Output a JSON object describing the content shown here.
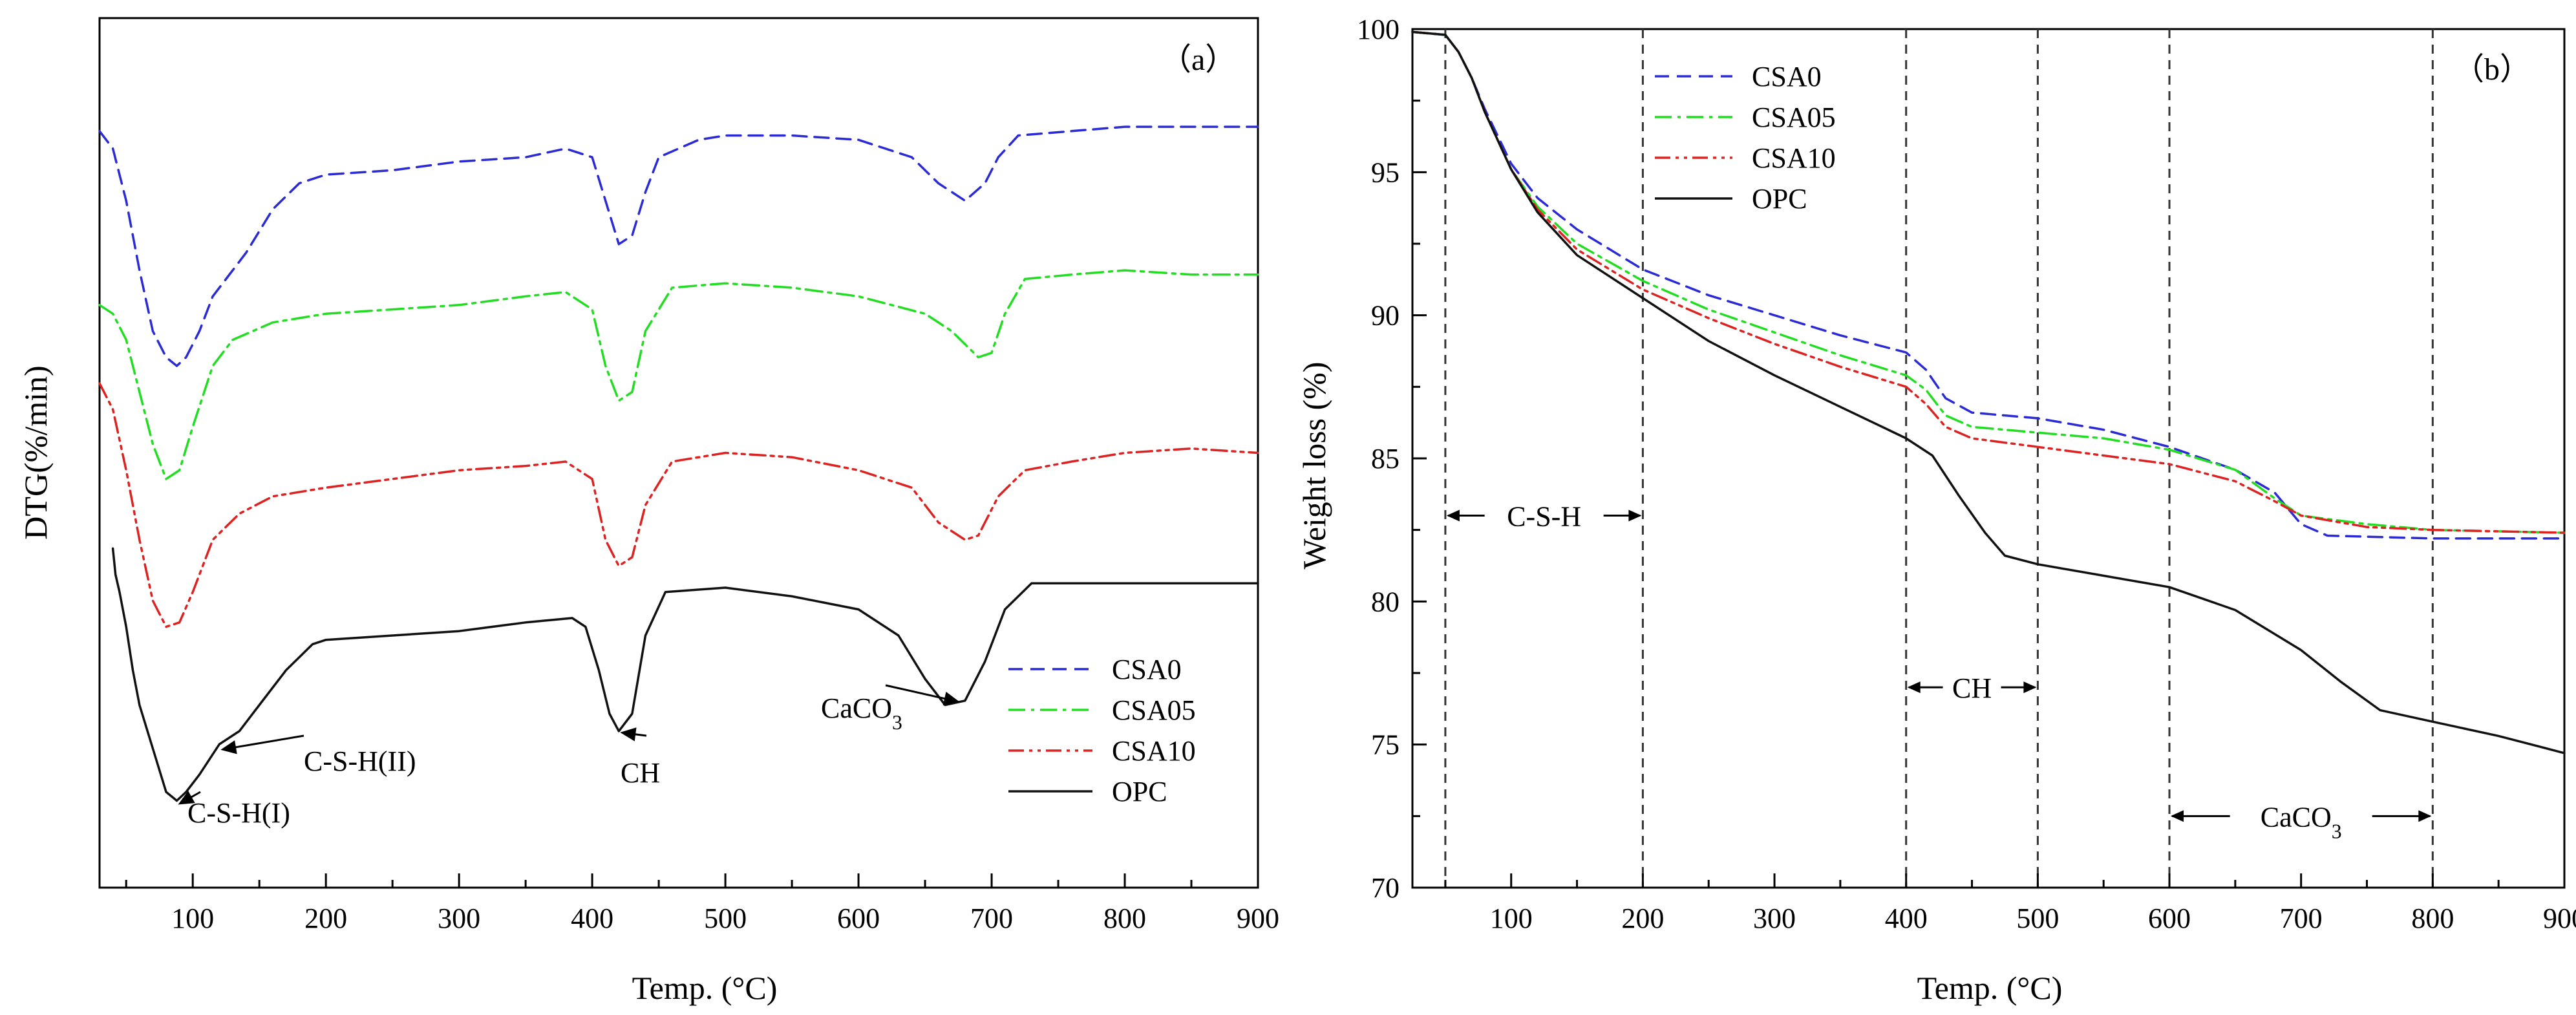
{
  "figure": {
    "panels": [
      "(a)",
      "(b)"
    ]
  },
  "chart_data": [
    {
      "id": "a",
      "type": "line",
      "panel_label": "（a）",
      "xlabel": "Temp. (°C)",
      "ylabel": "DTG(%/min)",
      "xlim": [
        30,
        900
      ],
      "ylim": [
        0,
        100
      ],
      "xticks": [
        100,
        200,
        300,
        400,
        500,
        600,
        700,
        800,
        900
      ],
      "y_tick_labels_shown": false,
      "legend": {
        "position": "bottom-right"
      },
      "series": [
        {
          "name": "CSA0",
          "color": "#2b2bd6",
          "dash": "dash",
          "points": [
            [
              30,
              87
            ],
            [
              40,
              85
            ],
            [
              50,
              79
            ],
            [
              60,
              71
            ],
            [
              70,
              64
            ],
            [
              80,
              61
            ],
            [
              88,
              60
            ],
            [
              95,
              61
            ],
            [
              105,
              64
            ],
            [
              115,
              68
            ],
            [
              125,
              70
            ],
            [
              140,
              73
            ],
            [
              160,
              78
            ],
            [
              180,
              81
            ],
            [
              200,
              82
            ],
            [
              250,
              82.5
            ],
            [
              300,
              83.5
            ],
            [
              350,
              84
            ],
            [
              380,
              85
            ],
            [
              400,
              84
            ],
            [
              410,
              79
            ],
            [
              420,
              74
            ],
            [
              430,
              75
            ],
            [
              440,
              80
            ],
            [
              450,
              84
            ],
            [
              480,
              86
            ],
            [
              500,
              86.5
            ],
            [
              550,
              86.5
            ],
            [
              600,
              86
            ],
            [
              640,
              84
            ],
            [
              660,
              81
            ],
            [
              680,
              79
            ],
            [
              695,
              81
            ],
            [
              705,
              84
            ],
            [
              720,
              86.5
            ],
            [
              760,
              87
            ],
            [
              800,
              87.5
            ],
            [
              850,
              87.5
            ],
            [
              900,
              87.5
            ]
          ]
        },
        {
          "name": "CSA05",
          "color": "#22dd22",
          "dash": "dashdot",
          "points": [
            [
              30,
              67
            ],
            [
              40,
              66
            ],
            [
              50,
              63
            ],
            [
              60,
              57
            ],
            [
              70,
              51
            ],
            [
              80,
              47
            ],
            [
              90,
              48
            ],
            [
              100,
              53
            ],
            [
              115,
              60
            ],
            [
              130,
              63
            ],
            [
              160,
              65
            ],
            [
              200,
              66
            ],
            [
              250,
              66.5
            ],
            [
              300,
              67
            ],
            [
              350,
              68
            ],
            [
              380,
              68.5
            ],
            [
              400,
              66.5
            ],
            [
              410,
              60
            ],
            [
              420,
              56
            ],
            [
              430,
              57
            ],
            [
              440,
              64
            ],
            [
              460,
              69
            ],
            [
              500,
              69.5
            ],
            [
              550,
              69
            ],
            [
              600,
              68
            ],
            [
              650,
              66
            ],
            [
              670,
              64
            ],
            [
              690,
              61
            ],
            [
              700,
              61.5
            ],
            [
              710,
              66
            ],
            [
              725,
              70
            ],
            [
              760,
              70.5
            ],
            [
              800,
              71
            ],
            [
              850,
              70.5
            ],
            [
              900,
              70.5
            ]
          ]
        },
        {
          "name": "CSA10",
          "color": "#dd2222",
          "dash": "dashdotdot",
          "points": [
            [
              30,
              58
            ],
            [
              40,
              55
            ],
            [
              50,
              48
            ],
            [
              60,
              40
            ],
            [
              70,
              33
            ],
            [
              80,
              30
            ],
            [
              90,
              30.5
            ],
            [
              100,
              34
            ],
            [
              115,
              40
            ],
            [
              135,
              43
            ],
            [
              160,
              45
            ],
            [
              200,
              46
            ],
            [
              250,
              47
            ],
            [
              300,
              48
            ],
            [
              350,
              48.5
            ],
            [
              380,
              49
            ],
            [
              400,
              47
            ],
            [
              410,
              40
            ],
            [
              420,
              37
            ],
            [
              430,
              38
            ],
            [
              440,
              44
            ],
            [
              460,
              49
            ],
            [
              500,
              50
            ],
            [
              550,
              49.5
            ],
            [
              600,
              48
            ],
            [
              640,
              46
            ],
            [
              660,
              42
            ],
            [
              680,
              40
            ],
            [
              690,
              40.5
            ],
            [
              705,
              45
            ],
            [
              725,
              48
            ],
            [
              760,
              49
            ],
            [
              800,
              50
            ],
            [
              850,
              50.5
            ],
            [
              900,
              50
            ]
          ]
        },
        {
          "name": "OPC",
          "color": "#111111",
          "dash": "solid",
          "points": [
            [
              40,
              39
            ],
            [
              42,
              36
            ],
            [
              45,
              34
            ],
            [
              50,
              30
            ],
            [
              55,
              25
            ],
            [
              60,
              21
            ],
            [
              70,
              16
            ],
            [
              80,
              11
            ],
            [
              88,
              10
            ],
            [
              95,
              11
            ],
            [
              105,
              13
            ],
            [
              120,
              16.5
            ],
            [
              135,
              18
            ],
            [
              150,
              21
            ],
            [
              170,
              25
            ],
            [
              190,
              28
            ],
            [
              200,
              28.5
            ],
            [
              250,
              29
            ],
            [
              300,
              29.5
            ],
            [
              350,
              30.5
            ],
            [
              385,
              31
            ],
            [
              395,
              30
            ],
            [
              405,
              25
            ],
            [
              413,
              20
            ],
            [
              420,
              18
            ],
            [
              430,
              20
            ],
            [
              440,
              29
            ],
            [
              455,
              34
            ],
            [
              500,
              34.5
            ],
            [
              550,
              33.5
            ],
            [
              600,
              32
            ],
            [
              630,
              29
            ],
            [
              650,
              24
            ],
            [
              665,
              21
            ],
            [
              680,
              21.5
            ],
            [
              695,
              26
            ],
            [
              710,
              32
            ],
            [
              730,
              35
            ],
            [
              800,
              35
            ],
            [
              850,
              35
            ],
            [
              900,
              35
            ]
          ]
        }
      ],
      "annotations": [
        {
          "text": "C-S-H(I)",
          "target": [
            88,
            10
          ]
        },
        {
          "text": "C-S-H(II)",
          "target": [
            118,
            16
          ]
        },
        {
          "text": "CH",
          "target": [
            420,
            18
          ]
        },
        {
          "text": "CaCO3",
          "target": [
            675,
            21.5
          ]
        }
      ]
    },
    {
      "id": "b",
      "type": "line",
      "panel_label": "（b）",
      "xlabel": "Temp. (°C)",
      "ylabel": "Weight loss (%)",
      "xlim": [
        25,
        900
      ],
      "ylim": [
        70,
        100
      ],
      "xticks": [
        100,
        200,
        300,
        400,
        500,
        600,
        700,
        800,
        900
      ],
      "yticks": [
        70,
        75,
        80,
        85,
        90,
        95,
        100
      ],
      "legend": {
        "position": "top-left"
      },
      "series": [
        {
          "name": "CSA0",
          "color": "#2b2bd6",
          "dash": "dash",
          "points": [
            [
              25,
              99.9
            ],
            [
              50,
              99.8
            ],
            [
              60,
              99.2
            ],
            [
              70,
              98.3
            ],
            [
              80,
              97.2
            ],
            [
              100,
              95.3
            ],
            [
              120,
              94.1
            ],
            [
              150,
              93
            ],
            [
              200,
              91.6
            ],
            [
              250,
              90.7
            ],
            [
              300,
              90
            ],
            [
              350,
              89.3
            ],
            [
              400,
              88.7
            ],
            [
              415,
              88.1
            ],
            [
              430,
              87.1
            ],
            [
              450,
              86.6
            ],
            [
              500,
              86.4
            ],
            [
              550,
              86
            ],
            [
              600,
              85.4
            ],
            [
              650,
              84.6
            ],
            [
              680,
              83.8
            ],
            [
              700,
              82.7
            ],
            [
              720,
              82.3
            ],
            [
              800,
              82.2
            ],
            [
              900,
              82.2
            ]
          ]
        },
        {
          "name": "CSA05",
          "color": "#22dd22",
          "dash": "dashdot",
          "points": [
            [
              25,
              99.9
            ],
            [
              50,
              99.8
            ],
            [
              60,
              99.2
            ],
            [
              70,
              98.3
            ],
            [
              80,
              97.1
            ],
            [
              100,
              95.1
            ],
            [
              120,
              93.8
            ],
            [
              150,
              92.5
            ],
            [
              200,
              91.2
            ],
            [
              250,
              90.2
            ],
            [
              300,
              89.4
            ],
            [
              350,
              88.6
            ],
            [
              400,
              87.9
            ],
            [
              415,
              87.4
            ],
            [
              430,
              86.5
            ],
            [
              450,
              86.1
            ],
            [
              500,
              85.9
            ],
            [
              550,
              85.7
            ],
            [
              600,
              85.3
            ],
            [
              650,
              84.6
            ],
            [
              680,
              83.6
            ],
            [
              700,
              83
            ],
            [
              750,
              82.7
            ],
            [
              800,
              82.5
            ],
            [
              900,
              82.4
            ]
          ]
        },
        {
          "name": "CSA10",
          "color": "#dd2222",
          "dash": "dashdotdot",
          "points": [
            [
              25,
              99.9
            ],
            [
              50,
              99.8
            ],
            [
              60,
              99.2
            ],
            [
              70,
              98.3
            ],
            [
              80,
              97.1
            ],
            [
              100,
              95.1
            ],
            [
              120,
              93.7
            ],
            [
              150,
              92.3
            ],
            [
              200,
              90.9
            ],
            [
              250,
              89.9
            ],
            [
              300,
              89
            ],
            [
              350,
              88.2
            ],
            [
              400,
              87.5
            ],
            [
              415,
              86.9
            ],
            [
              430,
              86.1
            ],
            [
              450,
              85.7
            ],
            [
              500,
              85.4
            ],
            [
              550,
              85.1
            ],
            [
              600,
              84.8
            ],
            [
              650,
              84.2
            ],
            [
              680,
              83.5
            ],
            [
              700,
              83
            ],
            [
              750,
              82.6
            ],
            [
              800,
              82.5
            ],
            [
              900,
              82.4
            ]
          ]
        },
        {
          "name": "OPC",
          "color": "#111111",
          "dash": "solid",
          "points": [
            [
              25,
              99.9
            ],
            [
              50,
              99.8
            ],
            [
              60,
              99.2
            ],
            [
              70,
              98.3
            ],
            [
              80,
              97.1
            ],
            [
              100,
              95.1
            ],
            [
              120,
              93.6
            ],
            [
              150,
              92.1
            ],
            [
              200,
              90.6
            ],
            [
              250,
              89.1
            ],
            [
              300,
              87.9
            ],
            [
              350,
              86.8
            ],
            [
              400,
              85.7
            ],
            [
              420,
              85.1
            ],
            [
              440,
              83.7
            ],
            [
              460,
              82.4
            ],
            [
              475,
              81.6
            ],
            [
              500,
              81.3
            ],
            [
              550,
              80.9
            ],
            [
              600,
              80.5
            ],
            [
              650,
              79.7
            ],
            [
              700,
              78.3
            ],
            [
              730,
              77.2
            ],
            [
              760,
              76.2
            ],
            [
              800,
              75.8
            ],
            [
              850,
              75.3
            ],
            [
              900,
              74.7
            ]
          ]
        }
      ],
      "vlines": [
        50,
        200,
        400,
        500,
        600,
        800
      ],
      "regions": [
        {
          "label": "C-S-H",
          "from": 50,
          "to": 200,
          "y": 83
        },
        {
          "label": "CH",
          "from": 400,
          "to": 500,
          "y": 77
        },
        {
          "label": "CaCO3",
          "from": 600,
          "to": 800,
          "y": 72.5
        }
      ]
    }
  ]
}
